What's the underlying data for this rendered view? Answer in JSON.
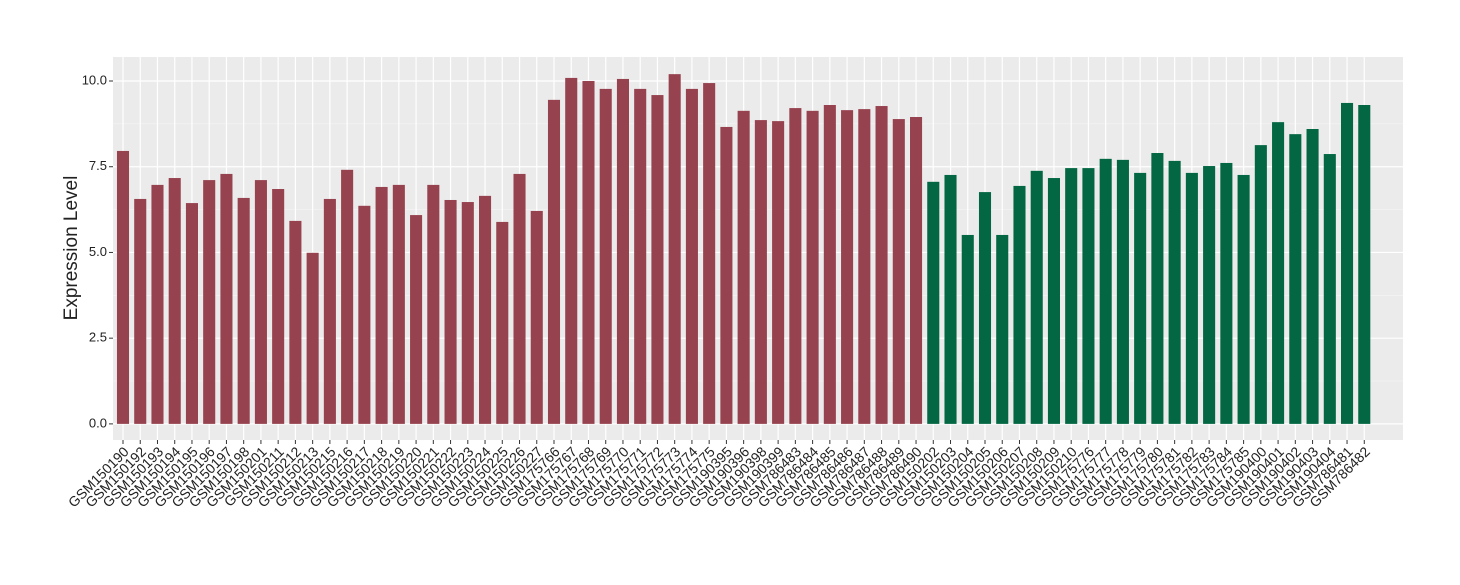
{
  "chart_data": {
    "type": "bar",
    "y_label": "Expression Level",
    "categories": [
      "GSM150190",
      "GSM150192",
      "GSM150193",
      "GSM150194",
      "GSM150195",
      "GSM150196",
      "GSM150197",
      "GSM150198",
      "GSM150201",
      "GSM150211",
      "GSM150212",
      "GSM150213",
      "GSM150215",
      "GSM150216",
      "GSM150217",
      "GSM150218",
      "GSM150219",
      "GSM150220",
      "GSM150221",
      "GSM150222",
      "GSM150223",
      "GSM150224",
      "GSM150225",
      "GSM150226",
      "GSM150227",
      "GSM175766",
      "GSM175767",
      "GSM175768",
      "GSM175769",
      "GSM175770",
      "GSM175771",
      "GSM175772",
      "GSM175773",
      "GSM175774",
      "GSM175775",
      "GSM190395",
      "GSM190396",
      "GSM190398",
      "GSM190399",
      "GSM786483",
      "GSM786484",
      "GSM786485",
      "GSM786486",
      "GSM786487",
      "GSM786488",
      "GSM786489",
      "GSM786490",
      "GSM150202",
      "GSM150203",
      "GSM150204",
      "GSM150205",
      "GSM150206",
      "GSM150207",
      "GSM150208",
      "GSM150209",
      "GSM150210",
      "GSM175776",
      "GSM175777",
      "GSM175778",
      "GSM175779",
      "GSM175780",
      "GSM175781",
      "GSM175782",
      "GSM175783",
      "GSM175784",
      "GSM175785",
      "GSM190400",
      "GSM190401",
      "GSM190402",
      "GSM190403",
      "GSM190404",
      "GSM786481",
      "GSM786482"
    ],
    "values": [
      7.96,
      6.56,
      6.97,
      7.17,
      6.44,
      7.11,
      7.29,
      6.59,
      7.11,
      6.85,
      5.92,
      4.99,
      6.56,
      7.41,
      6.36,
      6.91,
      6.97,
      6.09,
      6.97,
      6.53,
      6.47,
      6.65,
      5.89,
      7.29,
      6.21,
      9.45,
      10.09,
      10.0,
      9.77,
      10.06,
      9.77,
      9.59,
      10.2,
      9.77,
      9.94,
      8.66,
      9.13,
      8.86,
      8.83,
      9.21,
      9.13,
      9.3,
      9.15,
      9.18,
      9.27,
      8.89,
      8.95,
      7.06,
      7.26,
      5.51,
      6.76,
      5.51,
      6.94,
      7.38,
      7.17,
      7.46,
      7.46,
      7.73,
      7.7,
      7.32,
      7.9,
      7.67,
      7.32,
      7.52,
      7.61,
      7.26,
      8.13,
      8.8,
      8.45,
      8.6,
      7.87,
      9.36,
      9.3
    ],
    "colors": [
      "#97424f",
      "#97424f",
      "#97424f",
      "#97424f",
      "#97424f",
      "#97424f",
      "#97424f",
      "#97424f",
      "#97424f",
      "#97424f",
      "#97424f",
      "#97424f",
      "#97424f",
      "#97424f",
      "#97424f",
      "#97424f",
      "#97424f",
      "#97424f",
      "#97424f",
      "#97424f",
      "#97424f",
      "#97424f",
      "#97424f",
      "#97424f",
      "#97424f",
      "#97424f",
      "#97424f",
      "#97424f",
      "#97424f",
      "#97424f",
      "#97424f",
      "#97424f",
      "#97424f",
      "#97424f",
      "#97424f",
      "#97424f",
      "#97424f",
      "#97424f",
      "#97424f",
      "#97424f",
      "#97424f",
      "#97424f",
      "#97424f",
      "#97424f",
      "#97424f",
      "#97424f",
      "#97424f",
      "#026742",
      "#026742",
      "#026742",
      "#026742",
      "#026742",
      "#026742",
      "#026742",
      "#026742",
      "#026742",
      "#026742",
      "#026742",
      "#026742",
      "#026742",
      "#026742",
      "#026742",
      "#026742",
      "#026742",
      "#026742",
      "#026742",
      "#026742",
      "#026742",
      "#026742",
      "#026742",
      "#026742",
      "#026742",
      "#026742"
    ],
    "ylim": [
      -0.47,
      10.7
    ],
    "yticks": [
      {
        "value": 0,
        "label": "0.0"
      },
      2.5,
      {
        "value": 5,
        "label": "5.0"
      },
      7.5,
      {
        "value": 10,
        "label": "10.0"
      }
    ],
    "grid": true
  }
}
